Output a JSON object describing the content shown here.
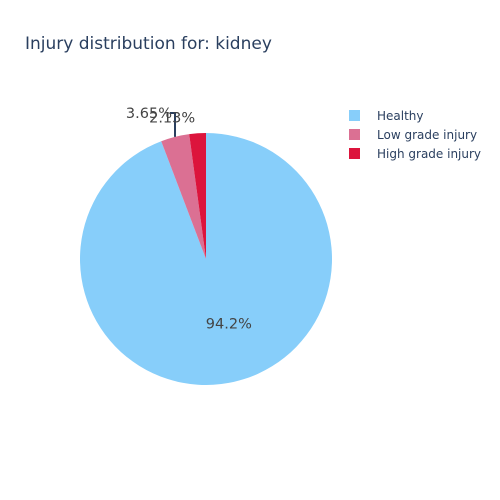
{
  "chart_data": {
    "type": "pie",
    "title": "Injury distribution for: kidney",
    "categories": [
      "Healthy",
      "Low grade injury",
      "High grade injury"
    ],
    "values": [
      94.2,
      3.65,
      2.13
    ],
    "labels": [
      "94.2%",
      "3.65%",
      "2.13%"
    ],
    "colors": [
      "#87cefa",
      "#db7093",
      "#dc143c"
    ],
    "direction": "clockwise",
    "start_angle": "12 o'clock",
    "legend_position": "top-right"
  }
}
